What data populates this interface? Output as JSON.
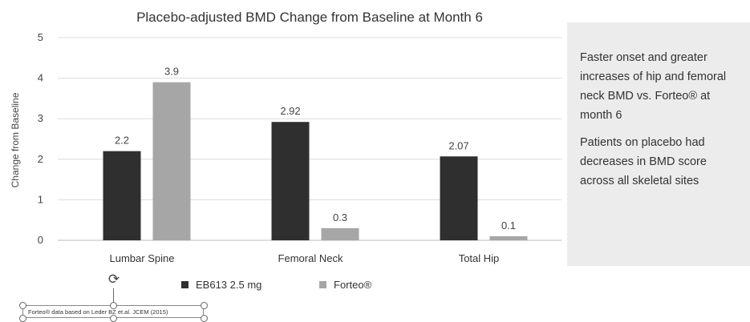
{
  "chart_data": {
    "type": "bar",
    "title": "Placebo-adjusted BMD Change from Baseline at Month 6",
    "xlabel": "",
    "ylabel": "Change from Baseline",
    "ylim": [
      0,
      5
    ],
    "yticks": [
      0,
      1,
      2,
      3,
      4,
      5
    ],
    "grid": true,
    "legend_position": "bottom",
    "categories": [
      "Lumbar Spine",
      "Femoral Neck",
      "Total Hip"
    ],
    "series": [
      {
        "name": "EB613 2.5 mg",
        "values": [
          2.2,
          2.92,
          2.07
        ],
        "labels": [
          "2.2",
          "2.92",
          "2.07"
        ],
        "color": "#2f2f2f"
      },
      {
        "name": "Forteo®",
        "values": [
          3.9,
          0.3,
          0.1
        ],
        "labels": [
          "3.9",
          "0.3",
          "0.1"
        ],
        "color": "#a6a6a6"
      }
    ]
  },
  "side_panel": {
    "paragraph1": "Faster onset and greater increases of hip and femoral neck BMD vs. Forteo® at month 6",
    "paragraph2": "Patients on placebo had decreases in BMD score across all skeletal sites"
  },
  "footnote": "Forteo® data based on Leder BZ et.al. JCEM (2015)",
  "icons": {
    "rotate_handle": "rotate-icon"
  }
}
